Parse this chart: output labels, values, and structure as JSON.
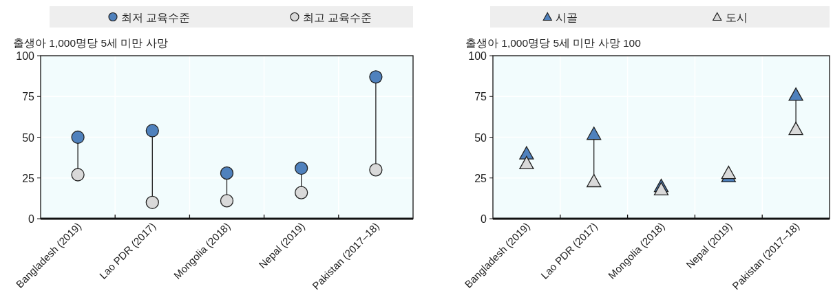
{
  "chart_data": [
    {
      "type": "scatter",
      "ylabel": "출생아 1,000명당 5세 미만 사망",
      "categories": [
        "Bangladesh (2019)",
        "Lao PDR (2017)",
        "Mongolia (2018)",
        "Nepal (2019)",
        "Pakistan (2017–18)"
      ],
      "ylim": [
        0,
        100
      ],
      "yticks": [
        0,
        25,
        50,
        75,
        100
      ],
      "grid": true,
      "legend": "top",
      "series": [
        {
          "name": "최저 교육수준",
          "color": "#4f81bd",
          "marker": "circle",
          "values": [
            50,
            54,
            28,
            31,
            87
          ]
        },
        {
          "name": "최고 교육수준",
          "color": "#d9d9d9",
          "marker": "circle",
          "values": [
            27,
            10,
            11,
            16,
            30
          ]
        }
      ]
    },
    {
      "type": "scatter",
      "ylabel": "출생아 1,000명당 5세 미만 사망 100",
      "categories": [
        "Bangladesh (2019)",
        "Lao PDR (2017)",
        "Mongolia (2018)",
        "Nepal (2019)",
        "Pakistan (2017–18)"
      ],
      "ylim": [
        0,
        100
      ],
      "yticks": [
        0,
        25,
        50,
        75,
        100
      ],
      "grid": true,
      "legend": "top",
      "series": [
        {
          "name": "시골",
          "color": "#4f81bd",
          "marker": "triangle",
          "values": [
            40,
            52,
            20,
            26,
            76
          ]
        },
        {
          "name": "도시",
          "color": "#d9d9d9",
          "marker": "triangle",
          "values": [
            34,
            23,
            18,
            28,
            55
          ]
        }
      ]
    }
  ]
}
